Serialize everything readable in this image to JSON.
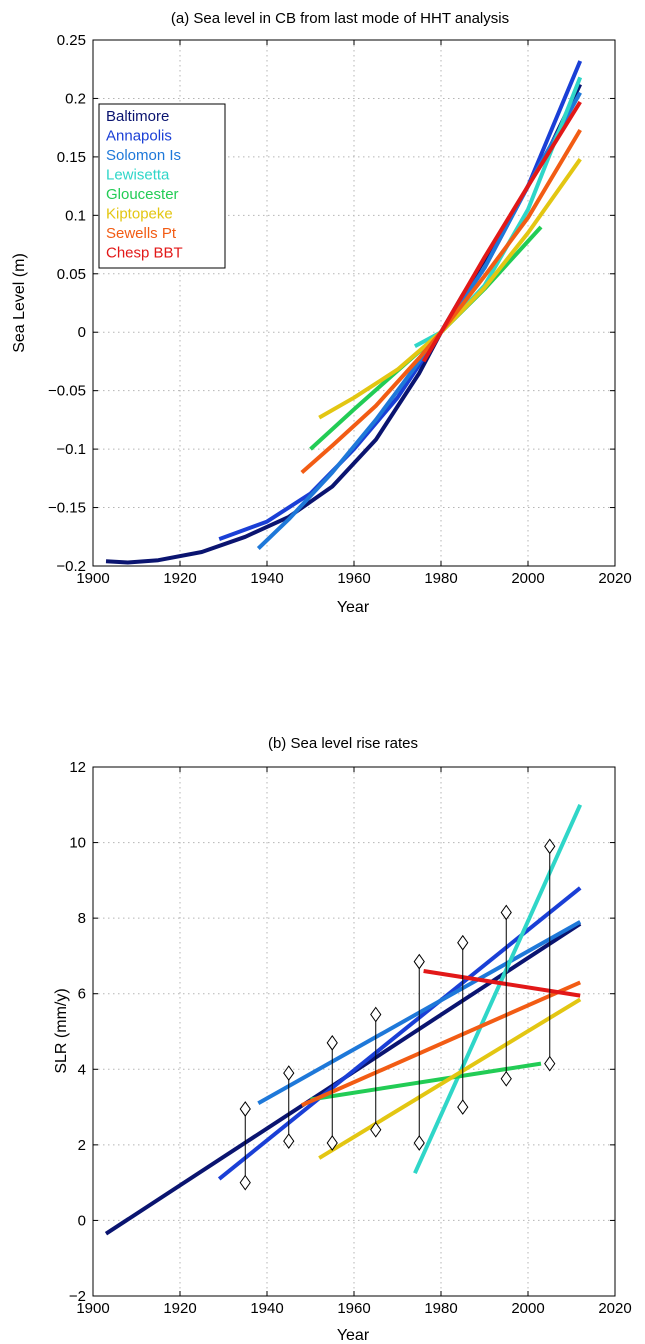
{
  "chart_data": [
    {
      "type": "line",
      "title": "(a) Sea level in CB from last mode of HHT analysis",
      "xlabel": "Year",
      "ylabel": "Sea Level (m)",
      "xlim": [
        1900,
        2020
      ],
      "ylim": [
        -0.2,
        0.25
      ],
      "xticks": [
        "1900",
        "1920",
        "1940",
        "1960",
        "1980",
        "2000",
        "2020"
      ],
      "yticks": [
        "-0.2",
        "-0.15",
        "-0.1",
        "-0.05",
        "0",
        "0.05",
        "0.1",
        "0.15",
        "0.2",
        "0.25"
      ],
      "grid": true,
      "legend_position": "top-left",
      "series": [
        {
          "name": "Baltimore",
          "color": "#0a1470",
          "x": [
            1903,
            1908,
            1915,
            1925,
            1935,
            1945,
            1955,
            1965,
            1975,
            1980,
            1985,
            1995,
            2005,
            2012
          ],
          "y": [
            -0.196,
            -0.197,
            -0.195,
            -0.188,
            -0.175,
            -0.158,
            -0.132,
            -0.092,
            -0.035,
            0.0,
            0.032,
            0.092,
            0.158,
            0.212
          ]
        },
        {
          "name": "Annapolis",
          "color": "#1a3fd6",
          "x": [
            1929,
            1940,
            1950,
            1960,
            1970,
            1980,
            1990,
            2000,
            2012
          ],
          "y": [
            -0.177,
            -0.162,
            -0.138,
            -0.1,
            -0.056,
            0.0,
            0.055,
            0.125,
            0.232
          ]
        },
        {
          "name": "Solomon Is",
          "color": "#1e78d9",
          "x": [
            1938,
            1945,
            1955,
            1965,
            1975,
            1980,
            1990,
            2000,
            2012
          ],
          "y": [
            -0.185,
            -0.16,
            -0.12,
            -0.075,
            -0.025,
            0.0,
            0.055,
            0.125,
            0.205
          ]
        },
        {
          "name": "Lewisetta",
          "color": "#2fd6c8",
          "x": [
            1974,
            1980,
            1990,
            2000,
            2012
          ],
          "y": [
            -0.012,
            0.0,
            0.04,
            0.105,
            0.218
          ]
        },
        {
          "name": "Gloucester",
          "color": "#22cc55",
          "x": [
            1950,
            1960,
            1970,
            1980,
            1990,
            2003
          ],
          "y": [
            -0.1,
            -0.066,
            -0.033,
            0.0,
            0.037,
            0.09
          ]
        },
        {
          "name": "Kiptopeke",
          "color": "#e3c612",
          "x": [
            1952,
            1960,
            1970,
            1980,
            1990,
            2000,
            2012
          ],
          "y": [
            -0.073,
            -0.056,
            -0.032,
            0.0,
            0.038,
            0.085,
            0.148
          ]
        },
        {
          "name": "Sewells Pt",
          "color": "#f25c14",
          "x": [
            1948,
            1955,
            1965,
            1975,
            1980,
            1990,
            2000,
            2012
          ],
          "y": [
            -0.12,
            -0.097,
            -0.063,
            -0.022,
            0.0,
            0.048,
            0.098,
            0.173
          ]
        },
        {
          "name": "Chesp BBT",
          "color": "#e21818",
          "x": [
            1976,
            1980,
            1990,
            2000,
            2012
          ],
          "y": [
            -0.025,
            0.0,
            0.064,
            0.125,
            0.197
          ]
        }
      ]
    },
    {
      "type": "line",
      "title": "(b) Sea level rise rates",
      "xlabel": "Year",
      "ylabel": "SLR (mm/y)",
      "xlim": [
        1900,
        2020
      ],
      "ylim": [
        -2,
        12
      ],
      "xticks": [
        "1900",
        "1920",
        "1940",
        "1960",
        "1980",
        "2000",
        "2020"
      ],
      "yticks": [
        "-2",
        "0",
        "2",
        "4",
        "6",
        "8",
        "10",
        "12"
      ],
      "grid": true,
      "series": [
        {
          "name": "Baltimore",
          "color": "#0a1470",
          "x": [
            1903,
            2012
          ],
          "y": [
            -0.35,
            7.85
          ]
        },
        {
          "name": "Annapolis",
          "color": "#1a3fd6",
          "x": [
            1929,
            2012
          ],
          "y": [
            1.1,
            8.8
          ]
        },
        {
          "name": "Solomon Is",
          "color": "#1e78d9",
          "x": [
            1938,
            2012
          ],
          "y": [
            3.1,
            7.9
          ]
        },
        {
          "name": "Lewisetta",
          "color": "#2fd6c8",
          "x": [
            1974,
            2012
          ],
          "y": [
            1.25,
            11.0
          ]
        },
        {
          "name": "Gloucester",
          "color": "#22cc55",
          "x": [
            1950,
            2003
          ],
          "y": [
            3.2,
            4.15
          ]
        },
        {
          "name": "Kiptopeke",
          "color": "#e3c612",
          "x": [
            1952,
            2012
          ],
          "y": [
            1.65,
            5.85
          ]
        },
        {
          "name": "Sewells Pt",
          "color": "#f25c14",
          "x": [
            1948,
            2012
          ],
          "y": [
            3.05,
            6.3
          ]
        },
        {
          "name": "Chesp BBT",
          "color": "#e21818",
          "x": [
            1976,
            2012
          ],
          "y": [
            6.6,
            5.95
          ]
        }
      ],
      "ranges": [
        {
          "x": 1935,
          "low": 1.0,
          "high": 2.95
        },
        {
          "x": 1945,
          "low": 2.1,
          "high": 3.9
        },
        {
          "x": 1955,
          "low": 2.05,
          "high": 4.7
        },
        {
          "x": 1965,
          "low": 2.4,
          "high": 5.45
        },
        {
          "x": 1975,
          "low": 2.05,
          "high": 6.85
        },
        {
          "x": 1985,
          "low": 3.0,
          "high": 7.35
        },
        {
          "x": 1995,
          "low": 3.75,
          "high": 8.15
        },
        {
          "x": 2005,
          "low": 4.15,
          "high": 9.9
        }
      ]
    }
  ]
}
